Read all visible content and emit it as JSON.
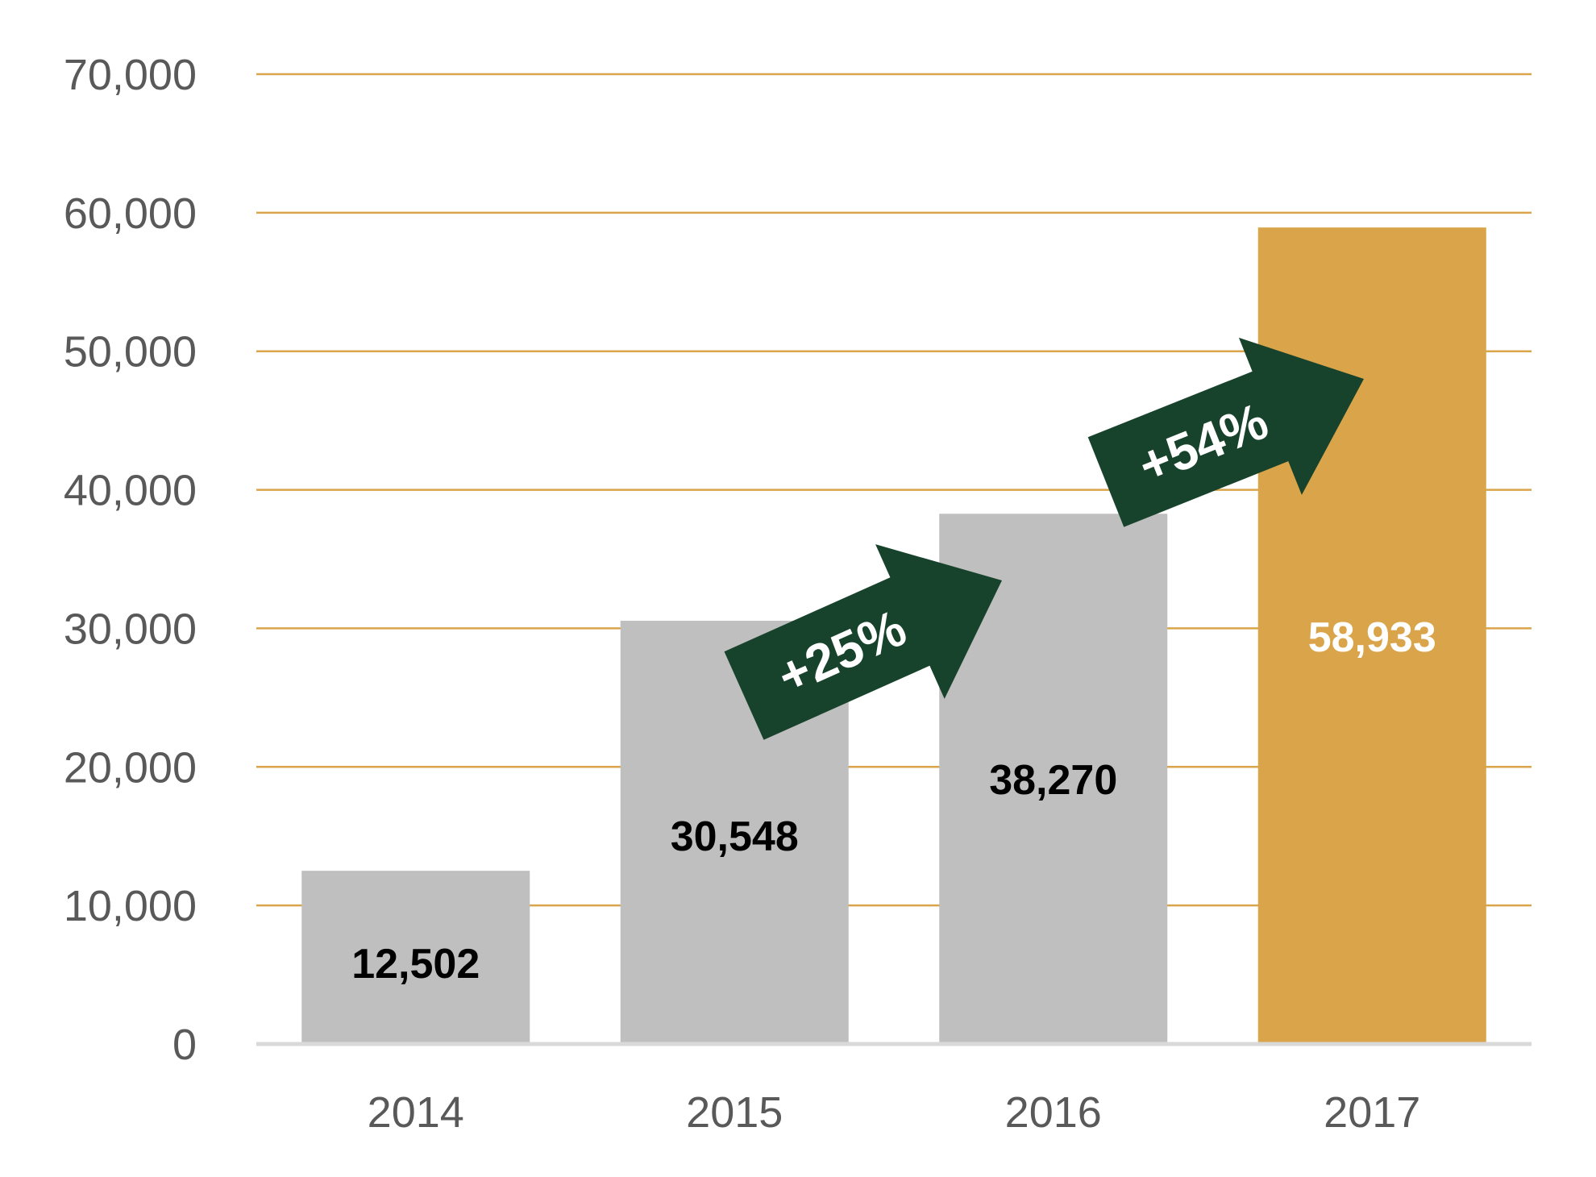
{
  "chart_data": {
    "type": "bar",
    "categories": [
      "2014",
      "2015",
      "2016",
      "2017"
    ],
    "values": [
      12502,
      30548,
      38270,
      58933
    ],
    "value_labels": [
      "12,502",
      "30,548",
      "38,270",
      "58,933"
    ],
    "title": "",
    "xlabel": "",
    "ylabel": "",
    "ylim": [
      0,
      70000
    ],
    "yticks": [
      0,
      10000,
      20000,
      30000,
      40000,
      50000,
      60000,
      70000
    ],
    "ytick_labels": [
      "0",
      "10,000",
      "20,000",
      "30,000",
      "40,000",
      "50,000",
      "60,000",
      "70,000"
    ],
    "grid": true,
    "legend": "none",
    "colors": {
      "bar_default": "#bfbfbf",
      "bar_highlight": "#d9a44a",
      "gridline": "#d9a44a",
      "baseline": "#d9d9d9",
      "label_dark": "#000000",
      "label_light": "#ffffff",
      "tick_text": "#595959",
      "arrow": "#17422b"
    },
    "highlight_index": 3,
    "annotations": [
      {
        "text": "+25%",
        "from_category": "2015",
        "to_category": "2016"
      },
      {
        "text": "+54%",
        "from_category": "2016",
        "to_category": "2017"
      }
    ]
  }
}
